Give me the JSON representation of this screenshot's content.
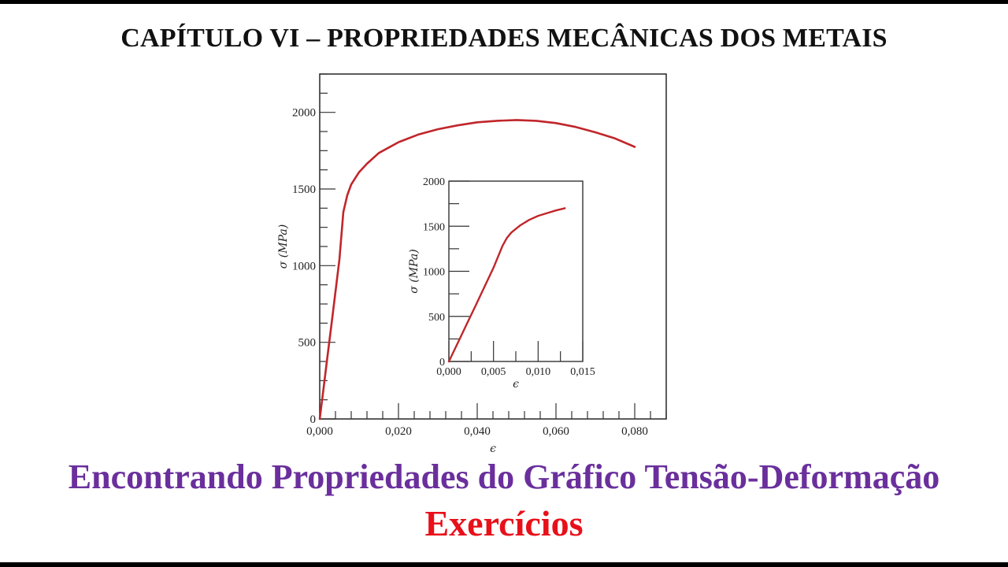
{
  "heading": "CAPÍTULO VI – PROPRIEDADES MECÂNICAS DOS METAIS",
  "subtitle": "Encontrando Propriedades do Gráfico Tensão-Deformação",
  "exercises": "Exercícios",
  "colors": {
    "subtitle": "#6a2f9c",
    "exercises": "#e8101a",
    "curve": "#c0262b",
    "axis": "#333333"
  },
  "chart_data": [
    {
      "type": "line",
      "xlabel": "ϵ",
      "ylabel": "σ (MPa)",
      "xlim": [
        0,
        0.088
      ],
      "ylim": [
        0,
        2250
      ],
      "x_ticks": [
        "0,000",
        "0,020",
        "0,040",
        "0,060",
        "0,080"
      ],
      "x_tick_values": [
        0,
        0.02,
        0.04,
        0.06,
        0.08
      ],
      "y_ticks": [
        "0",
        "500",
        "1000",
        "1500",
        "2000"
      ],
      "y_tick_values": [
        0,
        500,
        1000,
        1500,
        2000
      ],
      "grid": false,
      "series": [
        {
          "x": [
            0,
            0.001,
            0.002,
            0.003,
            0.004,
            0.005,
            0.006,
            0.007,
            0.008,
            0.01,
            0.012,
            0.015,
            0.02,
            0.025,
            0.03,
            0.035,
            0.04,
            0.045,
            0.05,
            0.055,
            0.06,
            0.065,
            0.07,
            0.075,
            0.08
          ],
          "y": [
            0,
            205,
            415,
            620,
            830,
            1040,
            1350,
            1460,
            1530,
            1610,
            1665,
            1735,
            1805,
            1855,
            1890,
            1915,
            1935,
            1945,
            1950,
            1945,
            1930,
            1905,
            1870,
            1830,
            1775
          ]
        }
      ]
    },
    {
      "type": "line",
      "xlabel": "ϵ",
      "ylabel": "σ (MPa)",
      "xlim": [
        0,
        0.015
      ],
      "ylim": [
        0,
        2000
      ],
      "x_ticks": [
        "0,000",
        "0,005",
        "0,010",
        "0,015"
      ],
      "x_tick_values": [
        0,
        0.005,
        0.01,
        0.015
      ],
      "y_ticks": [
        "0",
        "500",
        "1000",
        "1500",
        "2000"
      ],
      "y_tick_values": [
        0,
        500,
        1000,
        1500,
        2000
      ],
      "grid": false,
      "series": [
        {
          "x": [
            0,
            0.001,
            0.002,
            0.003,
            0.004,
            0.005,
            0.006,
            0.0065,
            0.007,
            0.008,
            0.009,
            0.01,
            0.011,
            0.012,
            0.013
          ],
          "y": [
            0,
            205,
            415,
            620,
            830,
            1040,
            1280,
            1370,
            1430,
            1510,
            1570,
            1615,
            1645,
            1675,
            1700
          ]
        }
      ]
    }
  ]
}
